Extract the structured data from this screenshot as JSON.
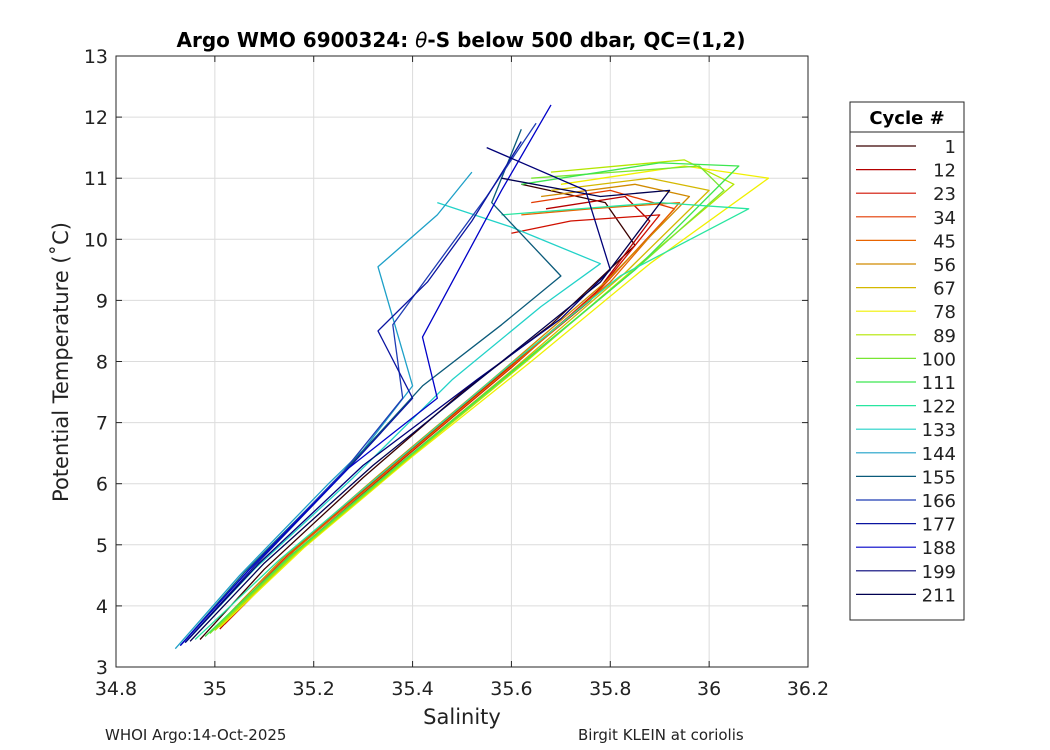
{
  "chart_data": {
    "type": "line",
    "title_prefix": "Argo WMO 6900324: ",
    "title_theta": "θ",
    "title_suffix": "-S below 500 dbar,  QC=(1,2)",
    "xlabel": "Salinity",
    "ylabel": "Potential Temperature (˚C)",
    "xlim": [
      34.8,
      36.2
    ],
    "ylim": [
      3,
      13
    ],
    "xticks": [
      34.8,
      35,
      35.2,
      35.4,
      35.6,
      35.8,
      36,
      36.2
    ],
    "xtick_labels": [
      "34.8",
      "35",
      "35.2",
      "35.4",
      "35.6",
      "35.8",
      "36",
      "36.2"
    ],
    "yticks": [
      3,
      4,
      5,
      6,
      7,
      8,
      9,
      10,
      11,
      12,
      13
    ],
    "ytick_labels": [
      "3",
      "4",
      "5",
      "6",
      "7",
      "8",
      "9",
      "10",
      "11",
      "12",
      "13"
    ],
    "grid": true,
    "legend": {
      "title": "Cycle #",
      "placement": "outside-right",
      "entries": [
        {
          "name": "1",
          "color": "#3a0000"
        },
        {
          "name": "12",
          "color": "#b40000"
        },
        {
          "name": "23",
          "color": "#d01000"
        },
        {
          "name": "34",
          "color": "#e33a00"
        },
        {
          "name": "45",
          "color": "#e86400"
        },
        {
          "name": "56",
          "color": "#d08a00"
        },
        {
          "name": "67",
          "color": "#d4b800"
        },
        {
          "name": "78",
          "color": "#f0f000"
        },
        {
          "name": "89",
          "color": "#b4e600"
        },
        {
          "name": "100",
          "color": "#78e632"
        },
        {
          "name": "111",
          "color": "#3ce650"
        },
        {
          "name": "122",
          "color": "#28e6a0"
        },
        {
          "name": "133",
          "color": "#22d2c8"
        },
        {
          "name": "144",
          "color": "#1ea0c8"
        },
        {
          "name": "155",
          "color": "#0a5a7a"
        },
        {
          "name": "166",
          "color": "#1e3cb4"
        },
        {
          "name": "177",
          "color": "#0a14a0"
        },
        {
          "name": "188",
          "color": "#0000c8"
        },
        {
          "name": "199",
          "color": "#000078"
        },
        {
          "name": "211",
          "color": "#000050"
        }
      ]
    },
    "series": [
      {
        "name": "1",
        "color": "#3a0000",
        "values": [
          [
            34.97,
            3.45
          ],
          [
            35.1,
            4.6
          ],
          [
            35.3,
            6.1
          ],
          [
            35.5,
            7.5
          ],
          [
            35.68,
            8.6
          ],
          [
            35.85,
            9.9
          ],
          [
            35.79,
            10.6
          ],
          [
            35.62,
            10.9
          ]
        ]
      },
      {
        "name": "12",
        "color": "#b40000",
        "values": [
          [
            35.01,
            3.62
          ],
          [
            35.16,
            4.9
          ],
          [
            35.36,
            6.3
          ],
          [
            35.58,
            7.8
          ],
          [
            35.76,
            9.0
          ],
          [
            35.88,
            10.3
          ],
          [
            35.83,
            10.7
          ],
          [
            35.67,
            10.5
          ]
        ]
      },
      {
        "name": "23",
        "color": "#d01000",
        "values": [
          [
            35.02,
            3.7
          ],
          [
            35.18,
            5.0
          ],
          [
            35.38,
            6.4
          ],
          [
            35.6,
            7.9
          ],
          [
            35.78,
            9.2
          ],
          [
            35.9,
            10.4
          ],
          [
            35.72,
            10.3
          ],
          [
            35.6,
            10.1
          ]
        ]
      },
      {
        "name": "34",
        "color": "#e33a00",
        "values": [
          [
            35.0,
            3.6
          ],
          [
            35.15,
            4.85
          ],
          [
            35.35,
            6.25
          ],
          [
            35.57,
            7.75
          ],
          [
            35.77,
            9.1
          ],
          [
            35.93,
            10.5
          ],
          [
            35.8,
            10.8
          ],
          [
            35.64,
            10.6
          ]
        ]
      },
      {
        "name": "45",
        "color": "#e86400",
        "values": [
          [
            35.01,
            3.65
          ],
          [
            35.16,
            4.9
          ],
          [
            35.37,
            6.35
          ],
          [
            35.59,
            7.85
          ],
          [
            35.8,
            9.3
          ],
          [
            35.94,
            10.6
          ],
          [
            35.76,
            10.5
          ],
          [
            35.62,
            10.4
          ]
        ]
      },
      {
        "name": "56",
        "color": "#d08a00",
        "values": [
          [
            34.99,
            3.55
          ],
          [
            35.14,
            4.8
          ],
          [
            35.34,
            6.2
          ],
          [
            35.56,
            7.7
          ],
          [
            35.79,
            9.3
          ],
          [
            35.96,
            10.7
          ],
          [
            35.85,
            10.9
          ],
          [
            35.66,
            10.7
          ]
        ]
      },
      {
        "name": "67",
        "color": "#d4b800",
        "values": [
          [
            35.0,
            3.6
          ],
          [
            35.16,
            4.85
          ],
          [
            35.37,
            6.3
          ],
          [
            35.6,
            7.85
          ],
          [
            35.83,
            9.45
          ],
          [
            36.0,
            10.8
          ],
          [
            35.88,
            11.0
          ],
          [
            35.68,
            10.8
          ]
        ]
      },
      {
        "name": "78",
        "color": "#f0f000",
        "values": [
          [
            35.01,
            3.65
          ],
          [
            35.18,
            4.95
          ],
          [
            35.4,
            6.45
          ],
          [
            35.64,
            8.0
          ],
          [
            35.88,
            9.6
          ],
          [
            36.12,
            11.0
          ],
          [
            35.95,
            11.2
          ],
          [
            35.7,
            10.9
          ]
        ]
      },
      {
        "name": "89",
        "color": "#b4e600",
        "values": [
          [
            35.0,
            3.6
          ],
          [
            35.17,
            4.9
          ],
          [
            35.39,
            6.4
          ],
          [
            35.63,
            8.0
          ],
          [
            35.86,
            9.6
          ],
          [
            36.05,
            10.9
          ],
          [
            35.95,
            11.3
          ],
          [
            35.68,
            11.1
          ]
        ]
      },
      {
        "name": "100",
        "color": "#78e632",
        "values": [
          [
            34.99,
            3.55
          ],
          [
            35.16,
            4.85
          ],
          [
            35.38,
            6.35
          ],
          [
            35.62,
            7.95
          ],
          [
            35.85,
            9.5
          ],
          [
            36.03,
            10.8
          ],
          [
            35.98,
            11.2
          ],
          [
            35.64,
            11.0
          ]
        ]
      },
      {
        "name": "111",
        "color": "#3ce650",
        "values": [
          [
            34.98,
            3.5
          ],
          [
            35.15,
            4.8
          ],
          [
            35.37,
            6.3
          ],
          [
            35.61,
            7.9
          ],
          [
            35.85,
            9.5
          ],
          [
            36.06,
            11.2
          ],
          [
            35.9,
            11.25
          ],
          [
            35.62,
            10.9
          ]
        ]
      },
      {
        "name": "122",
        "color": "#28e6a0",
        "values": [
          [
            34.96,
            3.45
          ],
          [
            35.13,
            4.75
          ],
          [
            35.35,
            6.25
          ],
          [
            35.59,
            7.9
          ],
          [
            35.82,
            9.4
          ],
          [
            36.08,
            10.5
          ],
          [
            35.9,
            10.6
          ],
          [
            35.58,
            10.4
          ]
        ]
      },
      {
        "name": "133",
        "color": "#22d2c8",
        "values": [
          [
            34.94,
            3.4
          ],
          [
            35.08,
            4.6
          ],
          [
            35.28,
            6.1
          ],
          [
            35.48,
            7.7
          ],
          [
            35.66,
            8.9
          ],
          [
            35.78,
            9.6
          ],
          [
            35.6,
            10.2
          ],
          [
            35.45,
            10.6
          ]
        ]
      },
      {
        "name": "144",
        "color": "#1ea0c8",
        "values": [
          [
            34.92,
            3.3
          ],
          [
            35.05,
            4.5
          ],
          [
            35.23,
            6.0
          ],
          [
            35.3,
            6.55
          ],
          [
            35.4,
            7.6
          ],
          [
            35.33,
            9.55
          ],
          [
            35.45,
            10.4
          ],
          [
            35.52,
            11.1
          ]
        ]
      },
      {
        "name": "155",
        "color": "#0a5a7a",
        "values": [
          [
            34.93,
            3.35
          ],
          [
            35.06,
            4.55
          ],
          [
            35.25,
            6.1
          ],
          [
            35.42,
            7.6
          ],
          [
            35.58,
            8.6
          ],
          [
            35.7,
            9.4
          ],
          [
            35.56,
            10.6
          ],
          [
            35.62,
            11.8
          ]
        ]
      },
      {
        "name": "166",
        "color": "#1e3cb4",
        "values": [
          [
            34.93,
            3.35
          ],
          [
            35.07,
            4.6
          ],
          [
            35.26,
            6.2
          ],
          [
            35.38,
            7.4
          ],
          [
            35.36,
            8.6
          ],
          [
            35.45,
            9.6
          ],
          [
            35.55,
            10.7
          ],
          [
            35.65,
            11.9
          ]
        ]
      },
      {
        "name": "177",
        "color": "#0a14a0",
        "values": [
          [
            34.94,
            3.4
          ],
          [
            35.08,
            4.65
          ],
          [
            35.27,
            6.25
          ],
          [
            35.4,
            7.4
          ],
          [
            35.33,
            8.5
          ],
          [
            35.43,
            9.3
          ],
          [
            35.52,
            10.3
          ],
          [
            35.62,
            11.6
          ]
        ]
      },
      {
        "name": "188",
        "color": "#0000c8",
        "values": [
          [
            34.93,
            3.35
          ],
          [
            35.07,
            4.6
          ],
          [
            35.27,
            6.25
          ],
          [
            35.45,
            7.4
          ],
          [
            35.42,
            8.4
          ],
          [
            35.5,
            9.6
          ],
          [
            35.58,
            10.8
          ],
          [
            35.68,
            12.2
          ]
        ]
      },
      {
        "name": "199",
        "color": "#000078",
        "values": [
          [
            34.94,
            3.4
          ],
          [
            35.09,
            4.7
          ],
          [
            35.3,
            6.3
          ],
          [
            35.53,
            7.7
          ],
          [
            35.7,
            8.7
          ],
          [
            35.8,
            9.5
          ],
          [
            35.75,
            10.8
          ],
          [
            35.55,
            11.5
          ]
        ]
      },
      {
        "name": "211",
        "color": "#000050",
        "values": [
          [
            34.95,
            3.42
          ],
          [
            35.1,
            4.7
          ],
          [
            35.32,
            6.3
          ],
          [
            35.55,
            7.8
          ],
          [
            35.78,
            9.3
          ],
          [
            35.92,
            10.8
          ],
          [
            35.78,
            10.7
          ],
          [
            35.58,
            11.0
          ]
        ]
      }
    ]
  },
  "footer": {
    "left": "WHOI Argo:14-Oct-2025",
    "right": "Birgit KLEIN at coriolis"
  }
}
